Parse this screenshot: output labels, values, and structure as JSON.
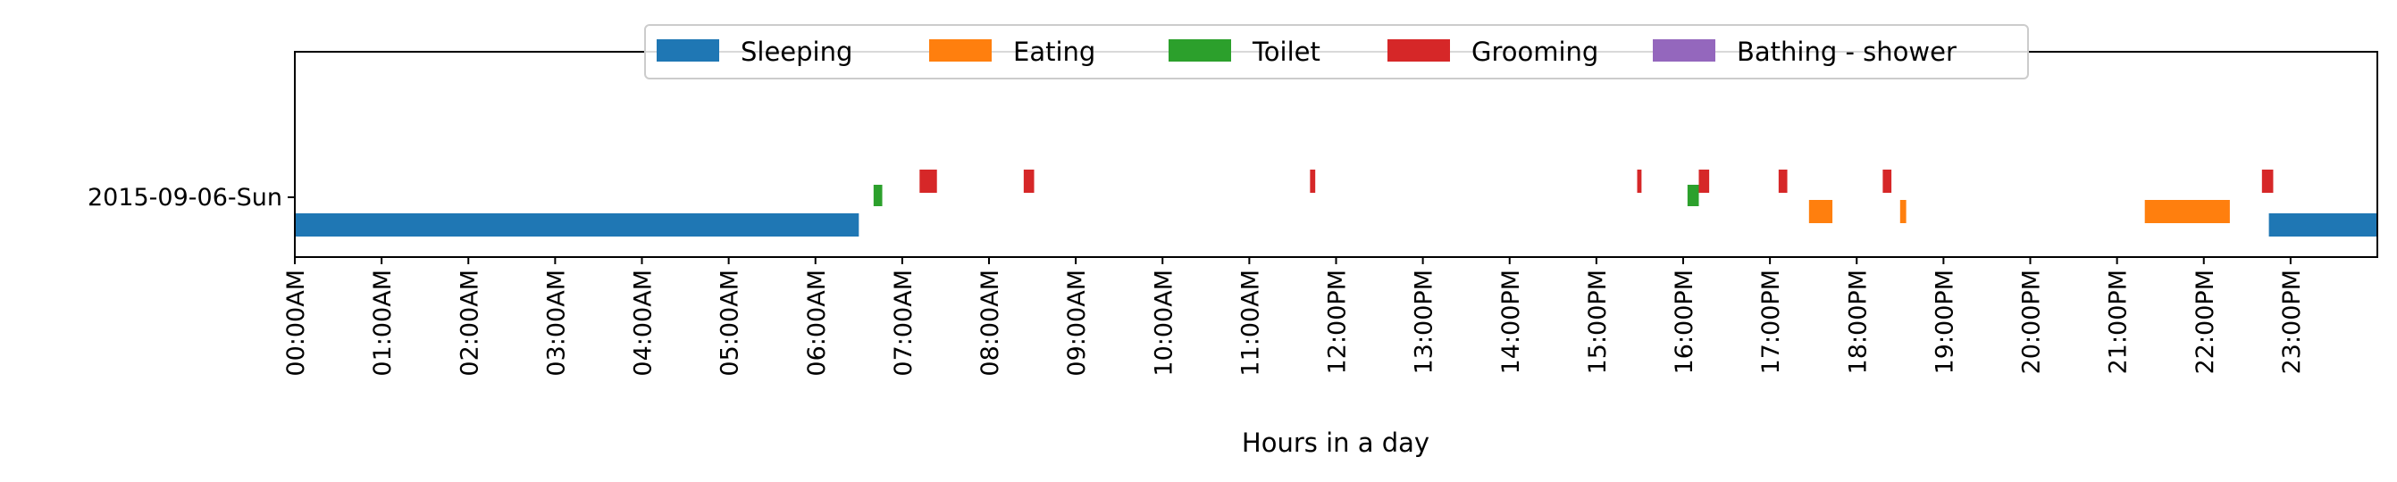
{
  "chart_data": {
    "type": "timeline",
    "xlabel": "Hours in a day",
    "xlim": [
      0,
      24
    ],
    "y_category": "2015-09-06-Sun",
    "tick_labels": [
      "00:00AM",
      "01:00AM",
      "02:00AM",
      "03:00AM",
      "04:00AM",
      "05:00AM",
      "06:00AM",
      "07:00AM",
      "08:00AM",
      "09:00AM",
      "10:00AM",
      "11:00AM",
      "12:00PM",
      "13:00PM",
      "14:00PM",
      "15:00PM",
      "16:00PM",
      "17:00PM",
      "18:00PM",
      "19:00PM",
      "20:00PM",
      "21:00PM",
      "22:00PM",
      "23:00PM"
    ],
    "legend": [
      {
        "name": "Sleeping",
        "color": "#1f77b4"
      },
      {
        "name": "Eating",
        "color": "#ff7f0e"
      },
      {
        "name": "Toilet",
        "color": "#2ca02c"
      },
      {
        "name": "Grooming",
        "color": "#d62728"
      },
      {
        "name": "Bathing - shower",
        "color": "#9467bd"
      }
    ],
    "series": [
      {
        "name": "Sleeping",
        "lane": 0,
        "intervals": [
          [
            0.0,
            6.5
          ],
          [
            22.75,
            24.0
          ]
        ]
      },
      {
        "name": "Eating",
        "lane": 1,
        "intervals": [
          [
            17.45,
            17.72
          ],
          [
            18.5,
            18.57
          ],
          [
            21.32,
            22.3
          ]
        ]
      },
      {
        "name": "Toilet",
        "lane": 2,
        "intervals": [
          [
            6.67,
            6.77
          ],
          [
            16.05,
            16.18
          ]
        ]
      },
      {
        "name": "Grooming",
        "lane": 3,
        "intervals": [
          [
            7.2,
            7.4
          ],
          [
            8.4,
            8.52
          ],
          [
            11.7,
            11.76
          ],
          [
            15.47,
            15.52
          ],
          [
            16.18,
            16.3
          ],
          [
            17.1,
            17.2
          ],
          [
            18.3,
            18.4
          ],
          [
            22.67,
            22.8
          ]
        ]
      },
      {
        "name": "Bathing - shower",
        "lane": 4,
        "intervals": []
      }
    ]
  }
}
